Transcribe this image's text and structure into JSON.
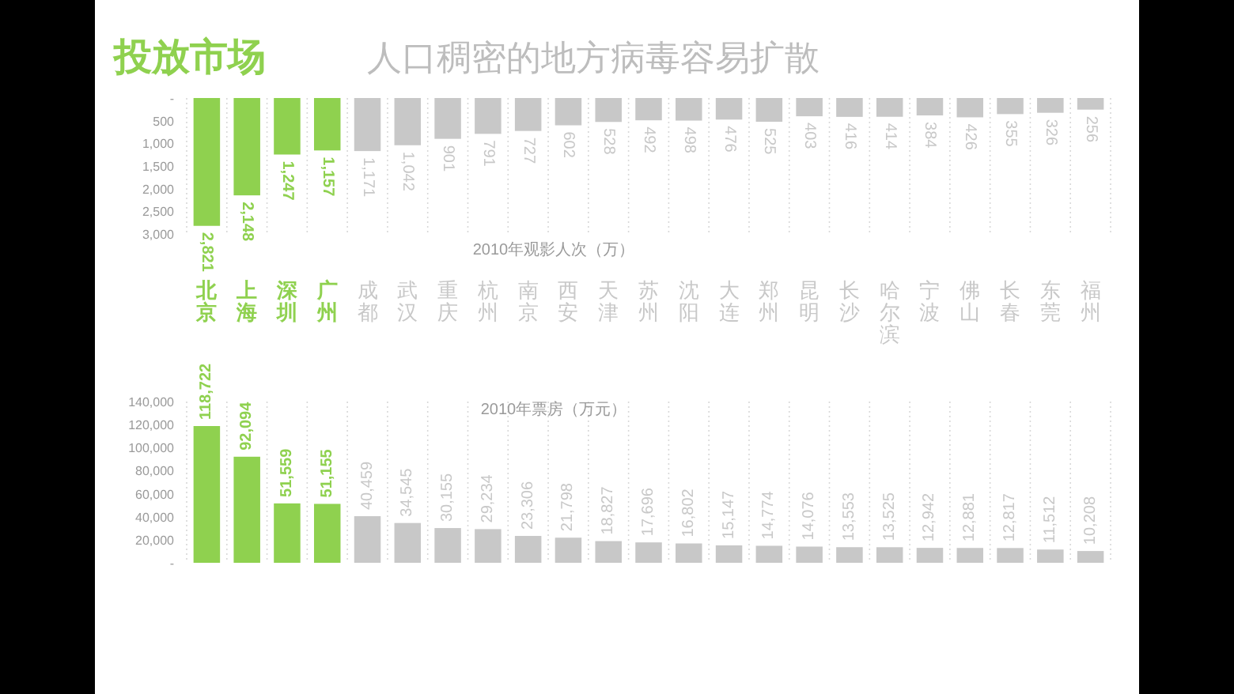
{
  "chart_data": [
    {
      "type": "bar",
      "title": "投放市场",
      "subtitle": "人口稠密的地方病毒容易扩散",
      "xlabel": "2010年观影人次（万）",
      "categories": [
        "北京",
        "上海",
        "深圳",
        "广州",
        "成都",
        "武汉",
        "重庆",
        "杭州",
        "南京",
        "西安",
        "天津",
        "苏州",
        "沈阳",
        "大连",
        "郑州",
        "昆明",
        "长沙",
        "哈尔滨",
        "宁波",
        "佛山",
        "长春",
        "东莞",
        "福州"
      ],
      "values": [
        2821,
        2148,
        1247,
        1157,
        1171,
        1042,
        901,
        791,
        727,
        602,
        528,
        492,
        498,
        476,
        525,
        403,
        416,
        414,
        384,
        426,
        355,
        326,
        256
      ],
      "value_labels": [
        "2,821",
        "2,148",
        "1,247",
        "1,157",
        "1,171",
        "1,042",
        "901",
        "791",
        "727",
        "602",
        "528",
        "492",
        "498",
        "476",
        "525",
        "403",
        "416",
        "414",
        "384",
        "426",
        "355",
        "326",
        "256"
      ],
      "colors": [
        "#8fd14f",
        "#8fd14f",
        "#8fd14f",
        "#8fd14f",
        "#c8c8c8",
        "#c8c8c8",
        "#c8c8c8",
        "#c8c8c8",
        "#c8c8c8",
        "#c8c8c8",
        "#c8c8c8",
        "#c8c8c8",
        "#c8c8c8",
        "#c8c8c8",
        "#c8c8c8",
        "#c8c8c8",
        "#c8c8c8",
        "#c8c8c8",
        "#c8c8c8",
        "#c8c8c8",
        "#c8c8c8",
        "#c8c8c8",
        "#c8c8c8"
      ],
      "ylim": [
        3000,
        0
      ],
      "yticks": [
        {
          "value": 0,
          "label": "-"
        },
        500,
        {
          "value": 1000,
          "label": "1,000"
        },
        {
          "value": 1500,
          "label": "1,500"
        },
        {
          "value": 2000,
          "label": "2,000"
        },
        {
          "value": 2500,
          "label": "2,500"
        },
        {
          "value": 3000,
          "label": "3,000"
        }
      ],
      "grid": "x"
    },
    {
      "type": "bar",
      "xlabel": "2010年票房（万元）",
      "tick_labels": "y",
      "categories": [
        "北京",
        "上海",
        "深圳",
        "广州",
        "成都",
        "武汉",
        "重庆",
        "杭州",
        "南京",
        "西安",
        "天津",
        "苏州",
        "沈阳",
        "大连",
        "郑州",
        "昆明",
        "长沙",
        "哈尔滨",
        "宁波",
        "佛山",
        "长春",
        "东莞",
        "福州"
      ],
      "values": [
        118722,
        92094,
        51559,
        51155,
        40459,
        34545,
        30155,
        29234,
        23306,
        21798,
        18827,
        17696,
        16802,
        15147,
        14774,
        14076,
        13553,
        13525,
        12942,
        12881,
        12817,
        11512,
        10208
      ],
      "value_labels": [
        "118,722",
        "92,094",
        "51,559",
        "51,155",
        "40,459",
        "34,545",
        "30,155",
        "29,234",
        "23,306",
        "21,798",
        "18,827",
        "17,696",
        "16,802",
        "15,147",
        "14,774",
        "14,076",
        "13,553",
        "13,525",
        "12,942",
        "12,881",
        "12,817",
        "11,512",
        "10,208"
      ],
      "colors": [
        "#8fd14f",
        "#8fd14f",
        "#8fd14f",
        "#8fd14f",
        "#c8c8c8",
        "#c8c8c8",
        "#c8c8c8",
        "#c8c8c8",
        "#c8c8c8",
        "#c8c8c8",
        "#c8c8c8",
        "#c8c8c8",
        "#c8c8c8",
        "#c8c8c8",
        "#c8c8c8",
        "#c8c8c8",
        "#c8c8c8",
        "#c8c8c8",
        "#c8c8c8",
        "#c8c8c8",
        "#c8c8c8",
        "#c8c8c8",
        "#c8c8c8"
      ],
      "ylim": [
        0,
        140000
      ],
      "yticks": [
        {
          "value": 0,
          "label": "-"
        },
        {
          "value": 20000,
          "label": "20,000"
        },
        {
          "value": 40000,
          "label": "40,000"
        },
        {
          "value": 60000,
          "label": "60,000"
        },
        {
          "value": 80000,
          "label": "80,000"
        },
        {
          "value": 100000,
          "label": "100,000"
        },
        {
          "value": 120000,
          "label": "120,000"
        },
        {
          "value": 140000,
          "label": "140,000"
        }
      ],
      "grid": "x"
    }
  ]
}
